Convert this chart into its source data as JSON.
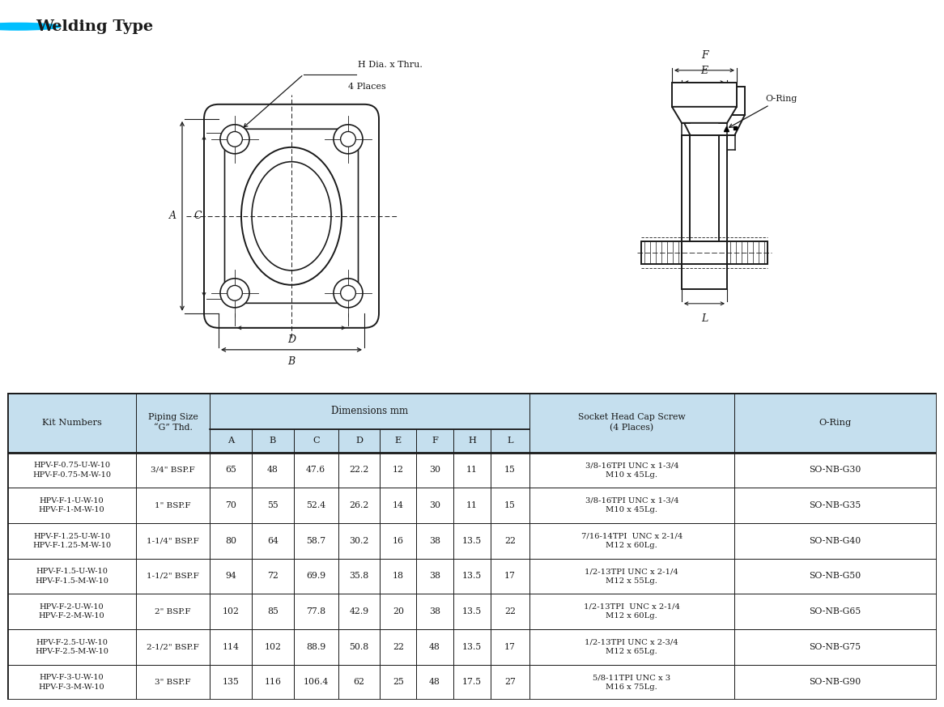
{
  "title": "Welding Type",
  "title_color": "#1a1a1a",
  "bullet_color": "#00bfff",
  "header_bg": "#c5dfee",
  "header_text_color": "#1a1a1a",
  "row_bg_white": "#ffffff",
  "border_color": "#1a1a1a",
  "dim_subheaders": [
    "A",
    "B",
    "C",
    "D",
    "E",
    "F",
    "H",
    "L"
  ],
  "rows": [
    [
      "HPV-F-0.75-U-W-10\nHPV-F-0.75-M-W-10",
      "3/4\" BSP.F",
      "65",
      "48",
      "47.6",
      "22.2",
      "12",
      "30",
      "11",
      "15",
      "3/8-16TPI UNC x 1-3/4\nM10 x 45Lg.",
      "SO-NB-G30"
    ],
    [
      "HPV-F-1-U-W-10\nHPV-F-1-M-W-10",
      "1\" BSP.F",
      "70",
      "55",
      "52.4",
      "26.2",
      "14",
      "30",
      "11",
      "15",
      "3/8-16TPI UNC x 1-3/4\nM10 x 45Lg.",
      "SO-NB-G35"
    ],
    [
      "HPV-F-1.25-U-W-10\nHPV-F-1.25-M-W-10",
      "1-1/4\" BSP.F",
      "80",
      "64",
      "58.7",
      "30.2",
      "16",
      "38",
      "13.5",
      "22",
      "7/16-14TPI  UNC x 2-1/4\nM12 x 60Lg.",
      "SO-NB-G40"
    ],
    [
      "HPV-F-1.5-U-W-10\nHPV-F-1.5-M-W-10",
      "1-1/2\" BSP.F",
      "94",
      "72",
      "69.9",
      "35.8",
      "18",
      "38",
      "13.5",
      "17",
      "1/2-13TPI UNC x 2-1/4\nM12 x 55Lg.",
      "SO-NB-G50"
    ],
    [
      "HPV-F-2-U-W-10\nHPV-F-2-M-W-10",
      "2\" BSP.F",
      "102",
      "85",
      "77.8",
      "42.9",
      "20",
      "38",
      "13.5",
      "22",
      "1/2-13TPI  UNC x 2-1/4\nM12 x 60Lg.",
      "SO-NB-G65"
    ],
    [
      "HPV-F-2.5-U-W-10\nHPV-F-2.5-M-W-10",
      "2-1/2\" BSP.F",
      "114",
      "102",
      "88.9",
      "50.8",
      "22",
      "48",
      "13.5",
      "17",
      "1/2-13TPI UNC x 2-3/4\nM12 x 65Lg.",
      "SO-NB-G75"
    ],
    [
      "HPV-F-3-U-W-10\nHPV-F-3-M-W-10",
      "3\" BSP.F",
      "135",
      "116",
      "106.4",
      "62",
      "25",
      "48",
      "17.5",
      "27",
      "5/8-11TPI UNC x 3\nM16 x 75Lg.",
      "SO-NB-G90"
    ]
  ]
}
